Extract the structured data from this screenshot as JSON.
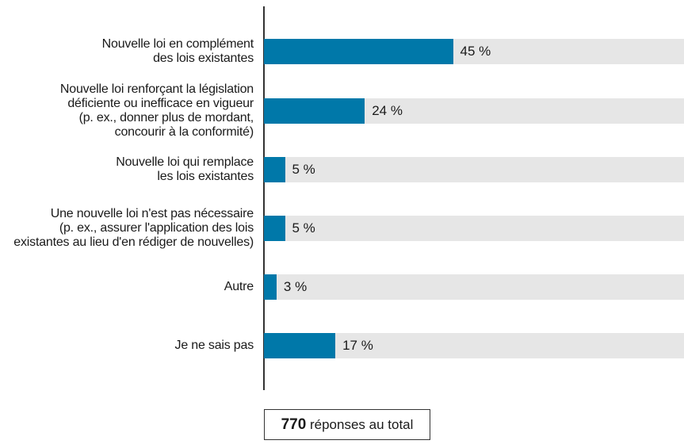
{
  "chart_data": {
    "type": "bar",
    "orientation": "horizontal",
    "categories": [
      "Nouvelle loi en complément\ndes lois existantes",
      "Nouvelle loi renforçant la législation\ndéficiente ou inefficace en vigueur\n(p. ex., donner plus de mordant,\nconcourir à la conformité)",
      "Nouvelle loi qui remplace\nles lois existantes",
      "Une nouvelle loi n'est pas nécessaire\n(p. ex., assurer l'application des lois\nexistantes au lieu d'en rédiger de nouvelles)",
      "Autre",
      "Je ne sais pas"
    ],
    "values": [
      45,
      24,
      5,
      5,
      3,
      17
    ],
    "value_labels": [
      "45 %",
      "24 %",
      "5 %",
      "5 %",
      "3 %",
      "17 %"
    ],
    "xlim": [
      0,
      100
    ],
    "colors": {
      "bar": "#0078a9",
      "track": "#e6e6e6"
    }
  },
  "footer": {
    "total": "770",
    "total_suffix": " réponses au total"
  }
}
